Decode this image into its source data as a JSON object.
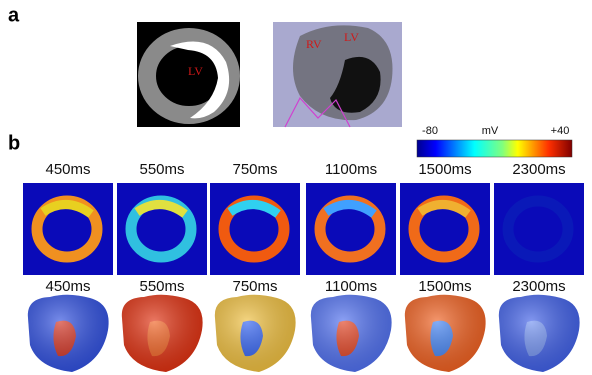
{
  "panel_a": {
    "label": "a",
    "slice_label": "LV",
    "volume_labels": [
      "RV",
      "LV"
    ]
  },
  "panel_b": {
    "label": "b",
    "colorbar": {
      "min_label": "-80",
      "unit": "mV",
      "max_label": "+40"
    },
    "slice_times": [
      "450ms",
      "550ms",
      "750ms",
      "1100ms",
      "1500ms",
      "2300ms"
    ],
    "volume_times": [
      "450ms",
      "550ms",
      "750ms",
      "1100ms",
      "1500ms",
      "2300ms"
    ]
  }
}
